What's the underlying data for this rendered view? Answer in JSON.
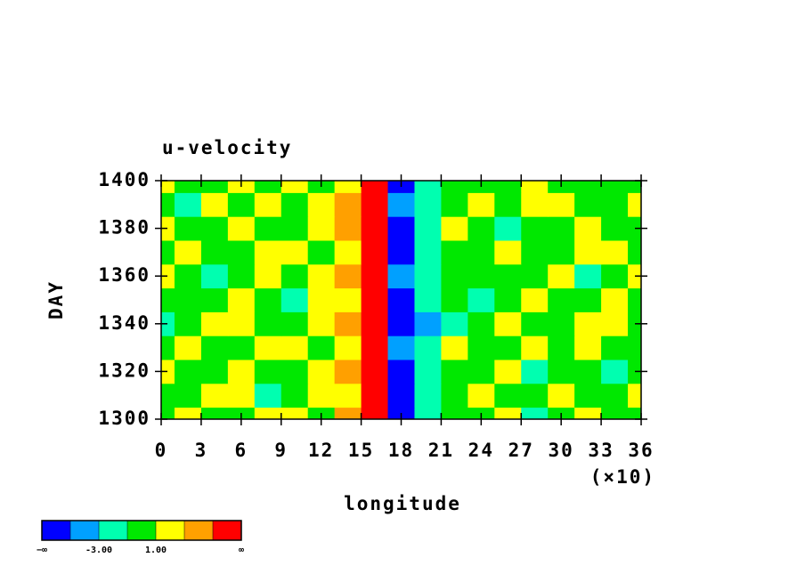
{
  "chart_data": {
    "type": "contourf",
    "title": "u-velocity",
    "xlabel": "longitude",
    "ylabel": "DAY",
    "x_scale_note": "(×10)",
    "xlim": [
      0,
      36
    ],
    "ylim": [
      1300,
      1400
    ],
    "xticks": [
      0,
      3,
      6,
      9,
      12,
      15,
      18,
      21,
      24,
      27,
      30,
      33,
      36
    ],
    "yticks": [
      1300,
      1320,
      1340,
      1360,
      1380,
      1400
    ],
    "x": [
      0,
      2,
      4,
      6,
      8,
      10,
      12,
      14,
      16,
      18,
      20,
      22,
      24,
      26,
      28,
      30,
      32,
      34,
      36
    ],
    "y": [
      1300,
      1310,
      1320,
      1330,
      1340,
      1350,
      1360,
      1370,
      1380,
      1390,
      1400
    ],
    "z": [
      [
        0.5,
        1.5,
        0.2,
        -0.5,
        2.5,
        1.0,
        0.3,
        3.5,
        6.0,
        -6.0,
        -2.0,
        0.5,
        -0.5,
        1.2,
        -1.5,
        0.4,
        1.8,
        0.2,
        -0.3
      ],
      [
        -0.4,
        0.8,
        2.2,
        1.4,
        -1.2,
        0.6,
        1.6,
        2.8,
        5.8,
        -5.6,
        -2.4,
        0.3,
        1.3,
        -0.8,
        0.5,
        2.1,
        -0.2,
        0.7,
        1.1
      ],
      [
        1.2,
        -0.6,
        0.4,
        2.6,
        0.9,
        -0.3,
        2.4,
        3.2,
        6.2,
        -5.8,
        -1.8,
        -0.5,
        0.6,
        1.5,
        -1.2,
        0.3,
        0.8,
        -1.4,
        0.5
      ],
      [
        0.3,
        1.9,
        -0.8,
        0.5,
        1.7,
        2.2,
        0.4,
        2.2,
        5.9,
        -4.2,
        -2.2,
        1.1,
        -0.4,
        0.2,
        2.3,
        -0.6,
        1.2,
        0.4,
        -0.9
      ],
      [
        -1.3,
        0.6,
        2.8,
        1.2,
        -0.2,
        0.8,
        1.4,
        3.6,
        5.6,
        -5.4,
        -3.4,
        -1.6,
        0.8,
        1.6,
        0.2,
        -0.7,
        2.4,
        1.0,
        0.3
      ],
      [
        0.8,
        -0.5,
        0.3,
        1.6,
        0.4,
        -1.1,
        2.0,
        2.6,
        6.1,
        -5.2,
        -2.6,
        0.4,
        -1.3,
        0.7,
        1.8,
        0.5,
        -0.4,
        1.5,
        0.6
      ],
      [
        1.6,
        0.2,
        -1.2,
        0.6,
        2.3,
        0.9,
        1.1,
        3.4,
        5.7,
        -4.6,
        -1.6,
        -0.6,
        0.9,
        -0.5,
        0.6,
        1.3,
        -1.1,
        0.5,
        1.9
      ],
      [
        -0.6,
        1.4,
        0.7,
        -0.9,
        1.0,
        2.5,
        0.4,
        2.4,
        6.3,
        -5.1,
        -2.1,
        0.6,
        -0.2,
        1.9,
        -0.8,
        0.4,
        1.6,
        2.2,
        0.1
      ],
      [
        2.6,
        0.3,
        -0.4,
        1.3,
        -0.6,
        0.8,
        1.8,
        3.1,
        6.4,
        -5.5,
        -1.7,
        1.2,
        0.5,
        -1.5,
        0.9,
        -0.3,
        2.0,
        0.6,
        -0.5
      ],
      [
        0.4,
        -1.4,
        1.1,
        0.3,
        1.5,
        -0.4,
        2.2,
        3.8,
        5.9,
        -4.8,
        -2.3,
        -0.4,
        1.4,
        0.6,
        2.5,
        1.1,
        -0.6,
        0.3,
        1.2
      ],
      [
        1.1,
        0.5,
        -0.3,
        2.0,
        0.6,
        1.3,
        0.7,
        2.9,
        6.0,
        -5.7,
        -1.9,
        0.8,
        -0.7,
        0.3,
        1.0,
        -0.2,
        0.9,
        -0.8,
        0.7
      ]
    ],
    "colorbar": {
      "bounds": [
        -5,
        -3,
        -1,
        1,
        3,
        5
      ],
      "colors": [
        "#0000ff",
        "#00a0ff",
        "#00ffb0",
        "#00e800",
        "#ffff00",
        "#ffa000",
        "#ff0000"
      ],
      "low_label": "−∞",
      "high_label": "∞",
      "labels": [
        {
          "value": -3,
          "label": "-3.00"
        },
        {
          "value": 1,
          "label": "1.00"
        }
      ]
    }
  }
}
